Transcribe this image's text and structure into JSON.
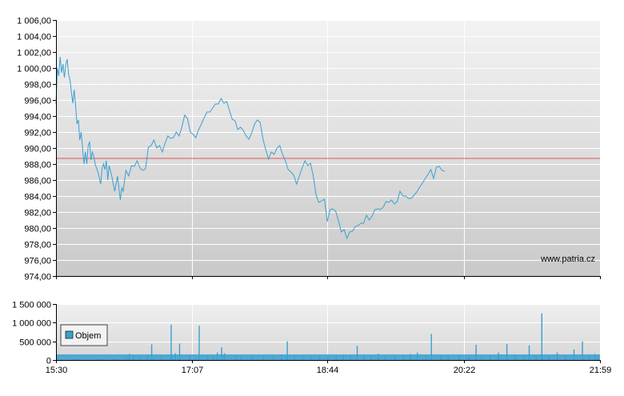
{
  "chart_data": [
    {
      "type": "line",
      "panel": "price",
      "ylim": [
        974,
        1006
      ],
      "yticks": [
        {
          "v": 974,
          "label": "974,00"
        },
        {
          "v": 976,
          "label": "976,00"
        },
        {
          "v": 978,
          "label": "978,00"
        },
        {
          "v": 980,
          "label": "980,00"
        },
        {
          "v": 982,
          "label": "982,00"
        },
        {
          "v": 984,
          "label": "984,00"
        },
        {
          "v": 986,
          "label": "986,00"
        },
        {
          "v": 988,
          "label": "988,00"
        },
        {
          "v": 990,
          "label": "990,00"
        },
        {
          "v": 992,
          "label": "992,00"
        },
        {
          "v": 994,
          "label": "994,00"
        },
        {
          "v": 996,
          "label": "996,00"
        },
        {
          "v": 998,
          "label": "998,00"
        },
        {
          "v": 1000,
          "label": "1 000,00"
        },
        {
          "v": 1002,
          "label": "1 002,00"
        },
        {
          "v": 1004,
          "label": "1 004,00"
        },
        {
          "v": 1006,
          "label": "1 006,00"
        }
      ],
      "x_range_minutes": [
        930,
        1319
      ],
      "reference_line": 988.7,
      "watermark": "www.patria.cz",
      "grid": true,
      "series": [
        {
          "color": "#3a9fd0",
          "points": [
            [
              930,
              995.5
            ],
            [
              931,
              1000
            ],
            [
              932,
              999
            ],
            [
              933,
              1001.4
            ],
            [
              934,
              999.4
            ],
            [
              935,
              1000.5
            ],
            [
              936,
              998.8
            ],
            [
              937,
              1000.4
            ],
            [
              938,
              1001.1
            ],
            [
              939,
              999.2
            ],
            [
              940,
              998.5
            ],
            [
              941,
              997
            ],
            [
              942,
              995.6
            ],
            [
              943,
              997.3
            ],
            [
              944,
              995.3
            ],
            [
              945,
              993
            ],
            [
              946,
              993.5
            ],
            [
              947,
              991
            ],
            [
              948,
              992
            ],
            [
              949,
              990
            ],
            [
              950,
              988
            ],
            [
              951,
              989.5
            ],
            [
              952,
              988
            ],
            [
              953,
              990.2
            ],
            [
              954,
              990.8
            ],
            [
              955,
              988.5
            ],
            [
              956,
              989.5
            ],
            [
              957,
              989
            ],
            [
              958,
              988
            ],
            [
              960,
              987
            ],
            [
              962,
              985.5
            ],
            [
              963,
              987.5
            ],
            [
              964,
              988
            ],
            [
              965,
              987.3
            ],
            [
              966,
              988.4
            ],
            [
              967,
              986
            ],
            [
              968,
              987.8
            ],
            [
              970,
              986.4
            ],
            [
              972,
              984.6
            ],
            [
              974,
              986.5
            ],
            [
              976,
              983.5
            ],
            [
              977,
              985
            ],
            [
              978,
              984.6
            ],
            [
              980,
              987.2
            ],
            [
              982,
              986.5
            ],
            [
              984,
              987.8
            ],
            [
              986,
              987.7
            ],
            [
              988,
              988.4
            ],
            [
              990,
              987.5
            ],
            [
              992,
              987.2
            ],
            [
              994,
              987.4
            ],
            [
              996,
              990.1
            ],
            [
              998,
              990.3
            ],
            [
              1000,
              991
            ],
            [
              1002,
              990
            ],
            [
              1004,
              990.3
            ],
            [
              1006,
              989.5
            ],
            [
              1008,
              990.6
            ],
            [
              1010,
              991.5
            ],
            [
              1012,
              991.2
            ],
            [
              1014,
              991.3
            ],
            [
              1016,
              992
            ],
            [
              1018,
              991.5
            ],
            [
              1020,
              992.6
            ],
            [
              1022,
              994.1
            ],
            [
              1024,
              993.7
            ],
            [
              1026,
              992
            ],
            [
              1028,
              991.7
            ],
            [
              1030,
              991.3
            ],
            [
              1032,
              992.3
            ],
            [
              1034,
              993
            ],
            [
              1036,
              993.8
            ],
            [
              1038,
              994.5
            ],
            [
              1040,
              994.5
            ],
            [
              1042,
              995
            ],
            [
              1044,
              995.5
            ],
            [
              1046,
              995.5
            ],
            [
              1048,
              996.2
            ],
            [
              1050,
              995.6
            ],
            [
              1052,
              995.8
            ],
            [
              1054,
              994.7
            ],
            [
              1056,
              993.6
            ],
            [
              1058,
              993.4
            ],
            [
              1060,
              992.3
            ],
            [
              1062,
              992.6
            ],
            [
              1064,
              992.2
            ],
            [
              1066,
              991.5
            ],
            [
              1068,
              991.1
            ],
            [
              1070,
              991.9
            ],
            [
              1072,
              993
            ],
            [
              1074,
              993.5
            ],
            [
              1076,
              993.2
            ],
            [
              1078,
              991.1
            ],
            [
              1080,
              989.8
            ],
            [
              1082,
              988.6
            ],
            [
              1084,
              989.5
            ],
            [
              1086,
              989.2
            ],
            [
              1088,
              990
            ],
            [
              1090,
              990.3
            ],
            [
              1092,
              989.2
            ],
            [
              1094,
              988.4
            ],
            [
              1096,
              987.3
            ],
            [
              1098,
              987
            ],
            [
              1100,
              986.6
            ],
            [
              1102,
              985.5
            ],
            [
              1104,
              986.5
            ],
            [
              1106,
              987.5
            ],
            [
              1108,
              988.4
            ],
            [
              1110,
              987.8
            ],
            [
              1112,
              988.1
            ],
            [
              1114,
              986.5
            ],
            [
              1116,
              984.1
            ],
            [
              1118,
              983.2
            ],
            [
              1120,
              983.4
            ],
            [
              1122,
              983.6
            ],
            [
              1124,
              980.8
            ],
            [
              1126,
              982.3
            ],
            [
              1128,
              982.4
            ],
            [
              1130,
              982.1
            ],
            [
              1132,
              980.9
            ],
            [
              1134,
              979.5
            ],
            [
              1136,
              979.8
            ],
            [
              1138,
              978.7
            ],
            [
              1140,
              979.5
            ],
            [
              1142,
              979.6
            ],
            [
              1144,
              980.2
            ],
            [
              1146,
              980.3
            ],
            [
              1148,
              980.6
            ],
            [
              1150,
              980.6
            ],
            [
              1152,
              981.6
            ],
            [
              1154,
              981
            ],
            [
              1156,
              981.5
            ],
            [
              1158,
              982.3
            ],
            [
              1160,
              982.4
            ],
            [
              1162,
              982.3
            ],
            [
              1164,
              982.6
            ],
            [
              1166,
              983.3
            ],
            [
              1168,
              983.2
            ],
            [
              1170,
              983.5
            ],
            [
              1172,
              983
            ],
            [
              1174,
              983.3
            ],
            [
              1176,
              984.6
            ],
            [
              1178,
              984
            ],
            [
              1180,
              984
            ],
            [
              1182,
              983.7
            ],
            [
              1184,
              983.7
            ],
            [
              1186,
              984.1
            ],
            [
              1188,
              984.5
            ],
            [
              1190,
              985.1
            ],
            [
              1192,
              985.6
            ],
            [
              1194,
              986.2
            ],
            [
              1196,
              986.7
            ],
            [
              1198,
              987.3
            ],
            [
              1200,
              986.2
            ],
            [
              1202,
              987.6
            ],
            [
              1204,
              987.7
            ],
            [
              1206,
              987.2
            ],
            [
              1208,
              987.1
            ]
          ]
        }
      ]
    },
    {
      "type": "bar",
      "panel": "volume",
      "ylim": [
        0,
        1500000
      ],
      "yticks": [
        {
          "v": 0,
          "label": "0"
        },
        {
          "v": 500000,
          "label": "500 000"
        },
        {
          "v": 1000000,
          "label": "1 000 000"
        },
        {
          "v": 1500000,
          "label": "1 500 000"
        }
      ],
      "x_range_minutes": [
        930,
        1319
      ],
      "xticks": [
        {
          "m": 930,
          "label": "15:30"
        },
        {
          "m": 1027,
          "label": "17:07"
        },
        {
          "m": 1124,
          "label": "18:44"
        },
        {
          "m": 1222,
          "label": "20:22"
        },
        {
          "m": 1319,
          "label": "21:59"
        }
      ],
      "legend": {
        "label": "Objem",
        "placement": "left"
      },
      "series": [
        {
          "name": "Objem",
          "color": "#3a9fd0",
          "bars": [
            [
              945,
              30000
            ],
            [
              960,
              40000
            ],
            [
              970,
              40000
            ],
            [
              980,
              110000
            ],
            [
              982,
              160000
            ],
            [
              985,
              120000
            ],
            [
              990,
              110000
            ],
            [
              995,
              150000
            ],
            [
              998,
              420000
            ],
            [
              1005,
              140000
            ],
            [
              1012,
              950000
            ],
            [
              1015,
              180000
            ],
            [
              1018,
              440000
            ],
            [
              1025,
              120000
            ],
            [
              1032,
              920000
            ],
            [
              1038,
              120000
            ],
            [
              1042,
              100000
            ],
            [
              1045,
              200000
            ],
            [
              1048,
              340000
            ],
            [
              1050,
              180000
            ],
            [
              1058,
              120000
            ],
            [
              1062,
              90000
            ],
            [
              1070,
              110000
            ],
            [
              1078,
              120000
            ],
            [
              1085,
              100000
            ],
            [
              1091,
              150000
            ],
            [
              1095,
              500000
            ],
            [
              1100,
              130000
            ],
            [
              1106,
              120000
            ],
            [
              1112,
              90000
            ],
            [
              1118,
              110000
            ],
            [
              1124,
              90000
            ],
            [
              1130,
              110000
            ],
            [
              1135,
              120000
            ],
            [
              1140,
              140000
            ],
            [
              1145,
              380000
            ],
            [
              1150,
              110000
            ],
            [
              1155,
              120000
            ],
            [
              1160,
              170000
            ],
            [
              1165,
              90000
            ],
            [
              1172,
              110000
            ],
            [
              1178,
              130000
            ],
            [
              1183,
              160000
            ],
            [
              1188,
              200000
            ],
            [
              1194,
              110000
            ],
            [
              1198,
              700000
            ],
            [
              1205,
              130000
            ],
            [
              1210,
              110000
            ],
            [
              1218,
              140000
            ],
            [
              1225,
              100000
            ],
            [
              1230,
              410000
            ],
            [
              1234,
              90000
            ],
            [
              1240,
              130000
            ],
            [
              1246,
              200000
            ],
            [
              1252,
              430000
            ],
            [
              1258,
              150000
            ],
            [
              1264,
              130000
            ],
            [
              1268,
              390000
            ],
            [
              1273,
              100000
            ],
            [
              1277,
              1250000
            ],
            [
              1282,
              120000
            ],
            [
              1288,
              200000
            ],
            [
              1294,
              130000
            ],
            [
              1300,
              280000
            ],
            [
              1306,
              500000
            ],
            [
              1311,
              110000
            ],
            [
              1315,
              160000
            ],
            [
              1317,
              100000
            ]
          ]
        }
      ]
    }
  ]
}
